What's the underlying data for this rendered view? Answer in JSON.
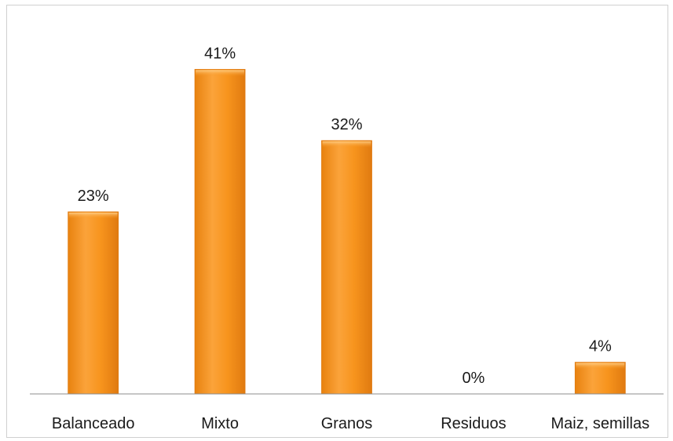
{
  "chart_data": {
    "type": "bar",
    "title": "",
    "xlabel": "",
    "ylabel": "",
    "categories": [
      "Balanceado",
      "Mixto",
      "Granos",
      "Residuos",
      "Maiz, semillas"
    ],
    "values": [
      23,
      41,
      32,
      0,
      4
    ],
    "value_labels": [
      "23%",
      "41%",
      "32%",
      "0%",
      "4%"
    ],
    "ylim": [
      0,
      45
    ],
    "unit": "%",
    "grid": false,
    "legend": "none",
    "colors": {
      "bar_fill": "#F7941D",
      "bar_highlight": "#FBB15A",
      "bar_edge": "#E07A10",
      "axis": "#8c8c8c"
    }
  }
}
